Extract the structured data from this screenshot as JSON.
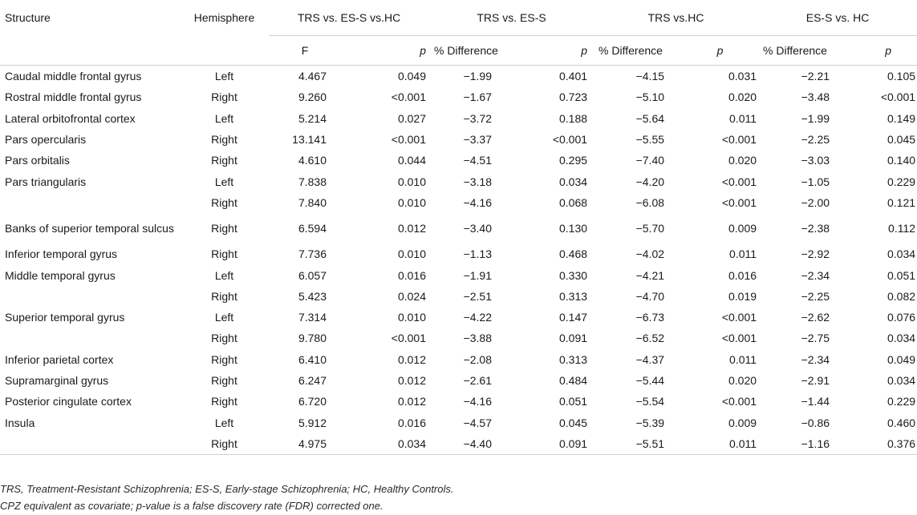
{
  "header": {
    "structure": "Structure",
    "hemisphere": "Hemisphere",
    "groups": [
      "TRS vs. ES-S vs.HC",
      "TRS vs. ES-S",
      "TRS vs.HC",
      "ES-S vs. HC"
    ],
    "sub": {
      "f": "F",
      "p": "p",
      "pct": "% Difference"
    }
  },
  "rows": [
    {
      "structure": "Caudal middle frontal gyrus",
      "hemisphere": "Left",
      "F": "4.467",
      "p_all": "0.049",
      "pd1": "−1.99",
      "p1": "0.401",
      "pd2": "−4.15",
      "p2": "0.031",
      "pd3": "−2.21",
      "p3": "0.105"
    },
    {
      "structure": "Rostral middle frontal gyrus",
      "hemisphere": "Right",
      "F": "9.260",
      "p_all": "<0.001",
      "pd1": "−1.67",
      "p1": "0.723",
      "pd2": "−5.10",
      "p2": "0.020",
      "pd3": "−3.48",
      "p3": "<0.001"
    },
    {
      "structure": "Lateral orbitofrontal cortex",
      "hemisphere": "Left",
      "F": "5.214",
      "p_all": "0.027",
      "pd1": "−3.72",
      "p1": "0.188",
      "pd2": "−5.64",
      "p2": "0.011",
      "pd3": "−1.99",
      "p3": "0.149"
    },
    {
      "structure": "Pars opercularis",
      "hemisphere": "Right",
      "F": "13.141",
      "p_all": "<0.001",
      "pd1": "−3.37",
      "p1": "<0.001",
      "pd2": "−5.55",
      "p2": "<0.001",
      "pd3": "−2.25",
      "p3": "0.045"
    },
    {
      "structure": "Pars orbitalis",
      "hemisphere": "Right",
      "F": "4.610",
      "p_all": "0.044",
      "pd1": "−4.51",
      "p1": "0.295",
      "pd2": "−7.40",
      "p2": "0.020",
      "pd3": "−3.03",
      "p3": "0.140"
    },
    {
      "structure": "Pars triangularis",
      "hemisphere": "Left",
      "F": "7.838",
      "p_all": "0.010",
      "pd1": "−3.18",
      "p1": "0.034",
      "pd2": "−4.20",
      "p2": "<0.001",
      "pd3": "−1.05",
      "p3": "0.229"
    },
    {
      "structure": "",
      "hemisphere": "Right",
      "F": "7.840",
      "p_all": "0.010",
      "pd1": "−4.16",
      "p1": "0.068",
      "pd2": "−6.08",
      "p2": "<0.001",
      "pd3": "−2.00",
      "p3": "0.121"
    },
    {
      "structure": "Banks of superior temporal sulcus",
      "hemisphere": "Right",
      "F": "6.594",
      "p_all": "0.012",
      "pd1": "−3.40",
      "p1": "0.130",
      "pd2": "−5.70",
      "p2": "0.009",
      "pd3": "−2.38",
      "p3": "0.112",
      "tall": true
    },
    {
      "structure": "Inferior temporal gyrus",
      "hemisphere": "Right",
      "F": "7.736",
      "p_all": "0.010",
      "pd1": "−1.13",
      "p1": "0.468",
      "pd2": "−4.02",
      "p2": "0.011",
      "pd3": "−2.92",
      "p3": "0.034"
    },
    {
      "structure": "Middle temporal gyrus",
      "hemisphere": "Left",
      "F": "6.057",
      "p_all": "0.016",
      "pd1": "−1.91",
      "p1": "0.330",
      "pd2": "−4.21",
      "p2": "0.016",
      "pd3": "−2.34",
      "p3": "0.051"
    },
    {
      "structure": "",
      "hemisphere": "Right",
      "F": "5.423",
      "p_all": "0.024",
      "pd1": "−2.51",
      "p1": "0.313",
      "pd2": "−4.70",
      "p2": "0.019",
      "pd3": "−2.25",
      "p3": "0.082"
    },
    {
      "structure": "Superior temporal gyrus",
      "hemisphere": "Left",
      "F": "7.314",
      "p_all": "0.010",
      "pd1": "−4.22",
      "p1": "0.147",
      "pd2": "−6.73",
      "p2": "<0.001",
      "pd3": "−2.62",
      "p3": "0.076"
    },
    {
      "structure": "",
      "hemisphere": "Right",
      "F": "9.780",
      "p_all": "<0.001",
      "pd1": "−3.88",
      "p1": "0.091",
      "pd2": "−6.52",
      "p2": "<0.001",
      "pd3": "−2.75",
      "p3": "0.034"
    },
    {
      "structure": "Inferior parietal cortex",
      "hemisphere": "Right",
      "F": "6.410",
      "p_all": "0.012",
      "pd1": "−2.08",
      "p1": "0.313",
      "pd2": "−4.37",
      "p2": "0.011",
      "pd3": "−2.34",
      "p3": "0.049"
    },
    {
      "structure": "Supramarginal gyrus",
      "hemisphere": "Right",
      "F": "6.247",
      "p_all": "0.012",
      "pd1": "−2.61",
      "p1": "0.484",
      "pd2": "−5.44",
      "p2": "0.020",
      "pd3": "−2.91",
      "p3": "0.034"
    },
    {
      "structure": "Posterior cingulate cortex",
      "hemisphere": "Right",
      "F": "6.720",
      "p_all": "0.012",
      "pd1": "−4.16",
      "p1": "0.051",
      "pd2": "−5.54",
      "p2": "<0.001",
      "pd3": "−1.44",
      "p3": "0.229"
    },
    {
      "structure": "Insula",
      "hemisphere": "Left",
      "F": "5.912",
      "p_all": "0.016",
      "pd1": "−4.57",
      "p1": "0.045",
      "pd2": "−5.39",
      "p2": "0.009",
      "pd3": "−0.86",
      "p3": "0.460"
    },
    {
      "structure": "",
      "hemisphere": "Right",
      "F": "4.975",
      "p_all": "0.034",
      "pd1": "−4.40",
      "p1": "0.091",
      "pd2": "−5.51",
      "p2": "0.011",
      "pd3": "−1.16",
      "p3": "0.376"
    }
  ],
  "footnotes": [
    "TRS, Treatment-Resistant Schizophrenia; ES-S, Early-stage Schizophrenia; HC, Healthy Controls.",
    "CPZ equivalent as covariate; p-value is a false discovery rate (FDR) corrected one."
  ],
  "colors": {
    "text": "#1a1a1a",
    "rule": "#cfcfcf",
    "background": "#ffffff"
  }
}
